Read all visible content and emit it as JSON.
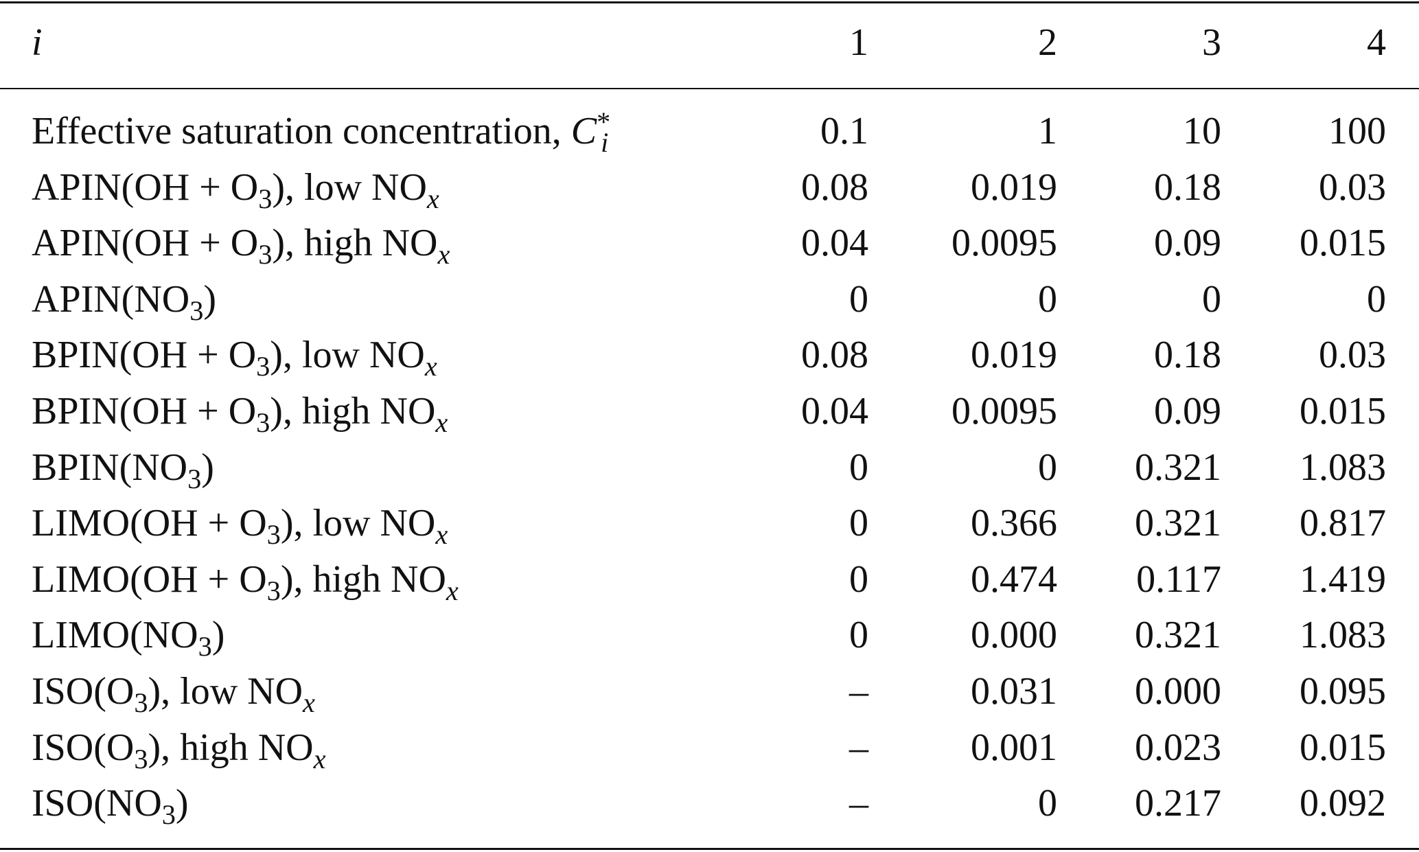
{
  "table": {
    "header": {
      "label": [
        [
          "i",
          "it"
        ]
      ],
      "cols": [
        "1",
        "2",
        "3",
        "4"
      ]
    },
    "rows": [
      {
        "label": [
          [
            "Effective saturation concentration, ",
            "n"
          ],
          [
            "C",
            "it"
          ],
          [
            "*",
            "sup"
          ],
          [
            "i",
            "sub-it"
          ]
        ],
        "cells": [
          "0.1",
          "1",
          "10",
          "100"
        ]
      },
      {
        "label": [
          [
            "APIN(OH + O",
            "n"
          ],
          [
            "3",
            "sub"
          ],
          [
            "), low NO",
            "n"
          ],
          [
            "x",
            "sub-it"
          ]
        ],
        "cells": [
          "0.08",
          "0.019",
          "0.18",
          "0.03"
        ]
      },
      {
        "label": [
          [
            "APIN(OH + O",
            "n"
          ],
          [
            "3",
            "sub"
          ],
          [
            "), high NO",
            "n"
          ],
          [
            "x",
            "sub-it"
          ]
        ],
        "cells": [
          "0.04",
          "0.0095",
          "0.09",
          "0.015"
        ]
      },
      {
        "label": [
          [
            "APIN(NO",
            "n"
          ],
          [
            "3",
            "sub"
          ],
          [
            ")",
            "n"
          ]
        ],
        "cells": [
          "0",
          "0",
          "0",
          "0"
        ]
      },
      {
        "label": [
          [
            "BPIN(OH + O",
            "n"
          ],
          [
            "3",
            "sub"
          ],
          [
            "), low NO",
            "n"
          ],
          [
            "x",
            "sub-it"
          ]
        ],
        "cells": [
          "0.08",
          "0.019",
          "0.18",
          "0.03"
        ]
      },
      {
        "label": [
          [
            "BPIN(OH + O",
            "n"
          ],
          [
            "3",
            "sub"
          ],
          [
            "), high NO",
            "n"
          ],
          [
            "x",
            "sub-it"
          ]
        ],
        "cells": [
          "0.04",
          "0.0095",
          "0.09",
          "0.015"
        ]
      },
      {
        "label": [
          [
            "BPIN(NO",
            "n"
          ],
          [
            "3",
            "sub"
          ],
          [
            ")",
            "n"
          ]
        ],
        "cells": [
          "0",
          "0",
          "0.321",
          "1.083"
        ]
      },
      {
        "label": [
          [
            "LIMO(OH + O",
            "n"
          ],
          [
            "3",
            "sub"
          ],
          [
            "), low NO",
            "n"
          ],
          [
            "x",
            "sub-it"
          ]
        ],
        "cells": [
          "0",
          "0.366",
          "0.321",
          "0.817"
        ]
      },
      {
        "label": [
          [
            "LIMO(OH + O",
            "n"
          ],
          [
            "3",
            "sub"
          ],
          [
            "), high NO",
            "n"
          ],
          [
            "x",
            "sub-it"
          ]
        ],
        "cells": [
          "0",
          "0.474",
          "0.117",
          "1.419"
        ]
      },
      {
        "label": [
          [
            "LIMO(NO",
            "n"
          ],
          [
            "3",
            "sub"
          ],
          [
            ")",
            "n"
          ]
        ],
        "cells": [
          "0",
          "0.000",
          "0.321",
          "1.083"
        ]
      },
      {
        "label": [
          [
            "ISO(O",
            "n"
          ],
          [
            "3",
            "sub"
          ],
          [
            "), low NO",
            "n"
          ],
          [
            "x",
            "sub-it"
          ]
        ],
        "cells": [
          "–",
          "0.031",
          "0.000",
          "0.095"
        ]
      },
      {
        "label": [
          [
            "ISO(O",
            "n"
          ],
          [
            "3",
            "sub"
          ],
          [
            "), high NO",
            "n"
          ],
          [
            "x",
            "sub-it"
          ]
        ],
        "cells": [
          "–",
          "0.001",
          "0.023",
          "0.015"
        ]
      },
      {
        "label": [
          [
            "ISO(NO",
            "n"
          ],
          [
            "3",
            "sub"
          ],
          [
            ")",
            "n"
          ]
        ],
        "cells": [
          "–",
          "0",
          "0.217",
          "0.092"
        ]
      }
    ]
  }
}
